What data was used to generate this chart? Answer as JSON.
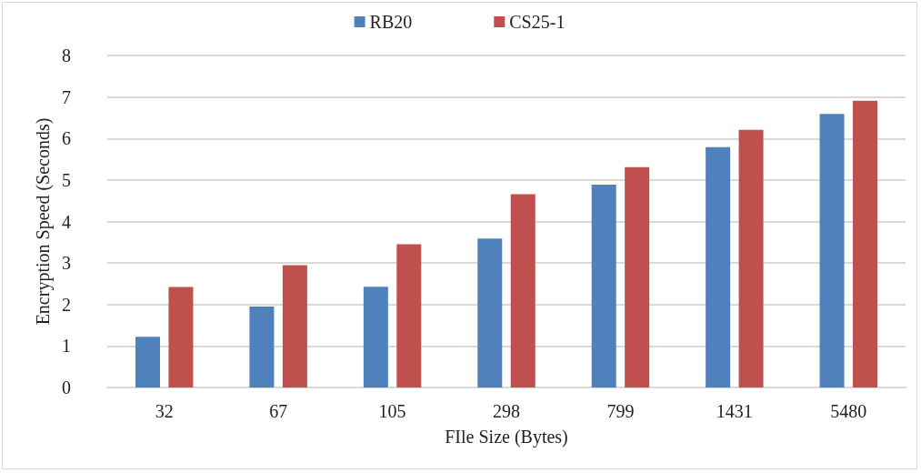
{
  "chart_data": {
    "type": "bar",
    "xlabel": "FIle Size (Bytes)",
    "ylabel": "Encryption Speed (Seconds)",
    "categories": [
      "32",
      "67",
      "105",
      "298",
      "799",
      "1431",
      "5480"
    ],
    "series": [
      {
        "name": "RB20",
        "color": "#4f81bd",
        "values": [
          1.22,
          1.95,
          2.43,
          3.59,
          4.89,
          5.79,
          6.59
        ]
      },
      {
        "name": "CS25-1",
        "color": "#c0504d",
        "values": [
          2.42,
          2.95,
          3.45,
          4.66,
          5.31,
          6.21,
          6.91
        ]
      }
    ],
    "ylim": [
      0,
      8
    ],
    "yticks": [
      0,
      1,
      2,
      3,
      4,
      5,
      6,
      7,
      8
    ],
    "grid": "y",
    "legend": "top"
  }
}
